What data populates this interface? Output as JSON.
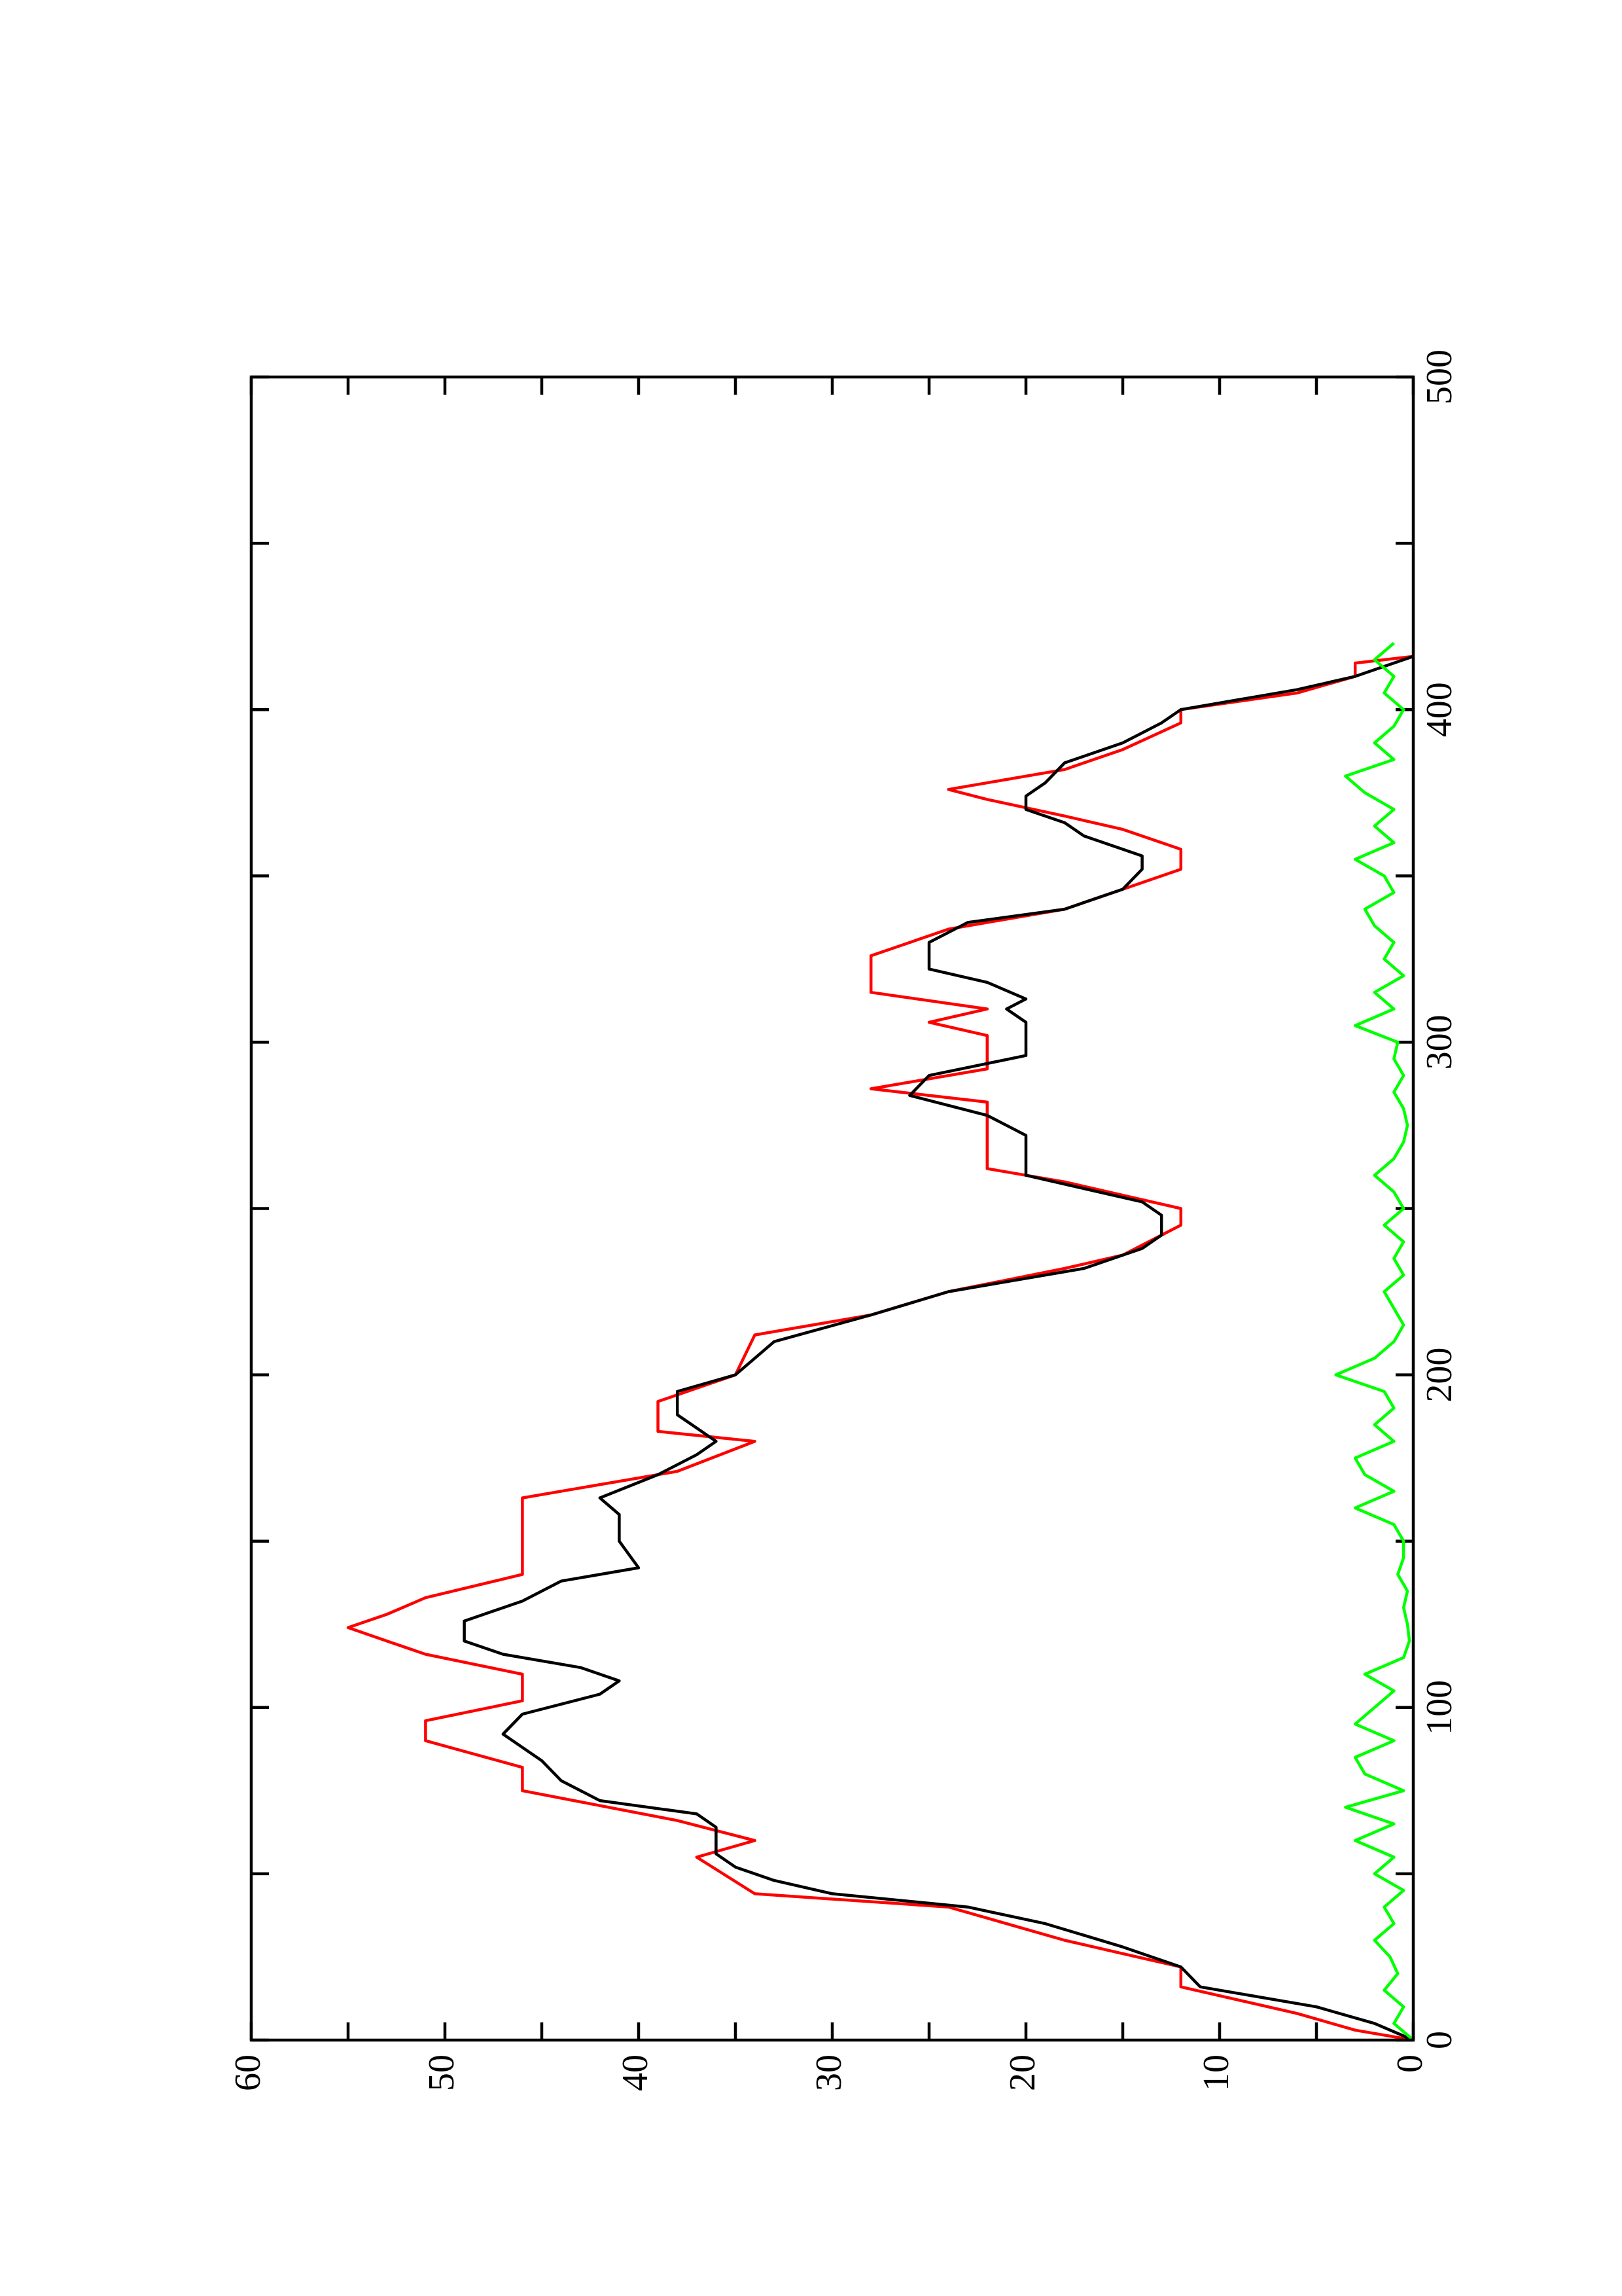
{
  "chart_data": {
    "type": "line",
    "xlim": [
      0,
      500
    ],
    "xticks": [
      0,
      100,
      200,
      300,
      400,
      500
    ],
    "xminorticks": [
      50,
      150,
      250,
      350,
      450
    ],
    "ylim": [
      0,
      60
    ],
    "yticks": [
      0,
      10,
      20,
      30,
      40,
      50,
      60
    ],
    "yminorticks": [
      5,
      15,
      25,
      35,
      45,
      55
    ],
    "series": [
      {
        "color": "#ff0000",
        "x": [
          0,
          3,
          8,
          16,
          22,
          26,
          30,
          40,
          44,
          55,
          60,
          66,
          75,
          82,
          90,
          96,
          102,
          110,
          116,
          120,
          124,
          128,
          133,
          140,
          163,
          171,
          180,
          183,
          192,
          200,
          212,
          218,
          225,
          232,
          236,
          245,
          250,
          258,
          262,
          282,
          286,
          292,
          302,
          306,
          310,
          315,
          326,
          334,
          340,
          348,
          352,
          358,
          364,
          368,
          373,
          376,
          382,
          388,
          396,
          400,
          405,
          410,
          414,
          416
        ],
        "values": [
          0,
          3,
          6,
          12,
          12,
          15,
          18,
          24,
          34,
          37,
          34,
          38,
          46,
          46,
          51,
          51,
          46,
          46,
          51,
          53,
          55,
          53,
          51,
          46,
          46,
          38,
          34,
          39,
          39,
          35,
          34,
          28,
          24,
          18,
          15,
          12,
          12,
          18,
          22,
          22,
          28,
          22,
          22,
          25,
          22,
          28,
          28,
          24,
          18,
          14,
          12,
          12,
          15,
          18,
          22,
          24,
          18,
          15,
          12,
          12,
          6,
          3,
          3,
          0
        ]
      },
      {
        "color": "#000000",
        "x": [
          0,
          5,
          10,
          16,
          22,
          28,
          35,
          40,
          44,
          48,
          52,
          56,
          60,
          64,
          68,
          72,
          78,
          84,
          88,
          92,
          98,
          104,
          108,
          112,
          116,
          120,
          126,
          132,
          138,
          142,
          150,
          158,
          163,
          170,
          176,
          180,
          184,
          188,
          195,
          200,
          210,
          218,
          225,
          232,
          238,
          242,
          248,
          252,
          256,
          260,
          266,
          272,
          278,
          284,
          290,
          296,
          302,
          306,
          310,
          313,
          318,
          322,
          330,
          336,
          340,
          346,
          352,
          356,
          362,
          366,
          370,
          374,
          378,
          384,
          390,
          396,
          400,
          406,
          410,
          416
        ],
        "values": [
          0,
          2,
          5,
          11,
          12,
          15,
          19,
          23,
          30,
          33,
          35,
          36,
          36,
          36,
          37,
          42,
          44,
          45,
          46,
          47,
          46,
          42,
          41,
          43,
          47,
          49,
          49,
          46,
          44,
          40,
          41,
          41,
          42,
          39,
          37,
          36,
          37,
          38,
          38,
          35,
          33,
          28,
          24,
          17,
          14,
          13,
          13,
          14,
          17,
          20,
          20,
          20,
          22,
          26,
          25,
          20,
          20,
          20,
          21,
          20,
          22,
          25,
          25,
          23,
          18,
          15,
          14,
          14,
          17,
          18,
          20,
          20,
          19,
          18,
          15,
          13,
          12,
          6,
          3,
          0
        ]
      },
      {
        "color": "#00ff00",
        "x": [
          0,
          5,
          10,
          15,
          20,
          25,
          30,
          35,
          40,
          45,
          50,
          55,
          60,
          65,
          70,
          75,
          80,
          85,
          90,
          95,
          100,
          105,
          110,
          115,
          120,
          125,
          130,
          135,
          140,
          145,
          150,
          155,
          160,
          165,
          170,
          175,
          180,
          185,
          190,
          195,
          200,
          205,
          210,
          215,
          220,
          225,
          230,
          235,
          240,
          245,
          250,
          255,
          260,
          265,
          270,
          275,
          280,
          285,
          290,
          295,
          300,
          305,
          310,
          315,
          320,
          325,
          330,
          335,
          340,
          345,
          350,
          355,
          360,
          365,
          370,
          375,
          380,
          385,
          390,
          395,
          400,
          405,
          410,
          415,
          420
        ],
        "values": [
          0,
          1,
          0.5,
          1.5,
          0.8,
          1.2,
          2,
          1,
          1.5,
          0.5,
          2,
          1,
          3,
          1,
          3.5,
          0.5,
          2.5,
          3,
          1,
          3,
          2,
          1,
          2.5,
          0.5,
          0.2,
          0.3,
          0.5,
          0.3,
          0.8,
          0.5,
          0.5,
          1,
          3,
          1,
          2.5,
          3,
          1,
          2,
          1,
          1.5,
          4,
          2,
          1,
          0.5,
          1,
          1.5,
          0.5,
          1,
          0.5,
          1.5,
          0.5,
          1,
          2,
          1,
          0.5,
          0.3,
          0.5,
          1,
          0.5,
          1,
          0.8,
          3,
          1,
          2,
          0.5,
          1.5,
          1,
          2,
          2.5,
          1,
          1.5,
          3,
          1,
          2,
          1,
          2.5,
          3.5,
          1,
          2,
          1,
          0.5,
          1.5,
          1,
          2,
          1
        ]
      }
    ]
  }
}
